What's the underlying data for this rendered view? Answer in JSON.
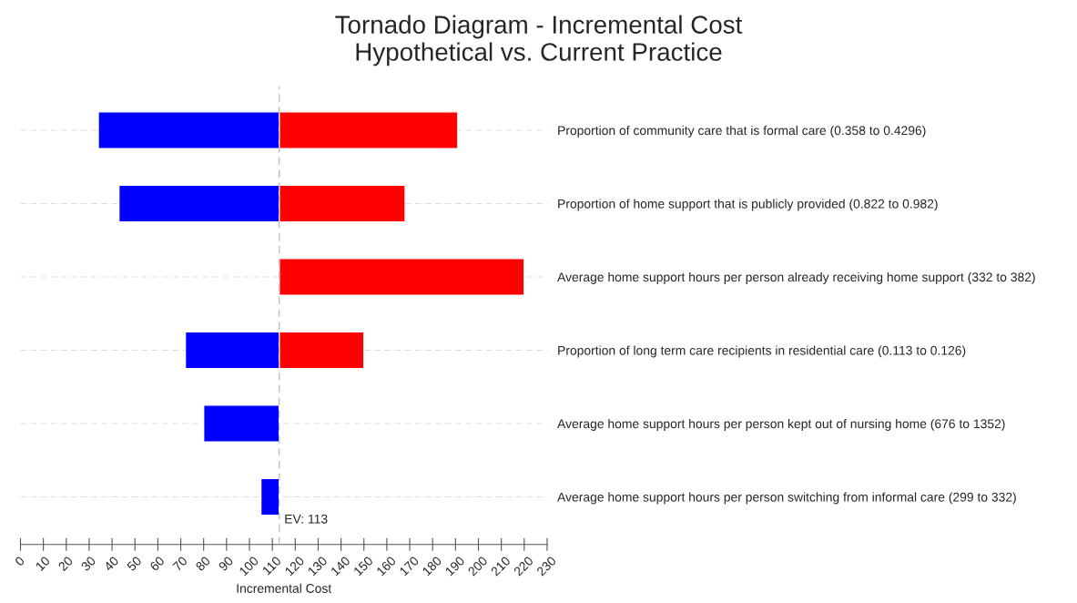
{
  "chart_data": {
    "type": "bar",
    "orientation": "horizontal",
    "title": "Tornado Diagram - Incremental Cost\nHypothetical vs. Current Practice",
    "xlabel": "Incremental Cost",
    "categories": [
      "Proportion of community care that is formal care (0.358 to 0.4296)",
      "Proportion of home support that is publicly provided (0.822 to 0.982)",
      "Average home support hours per person already receiving home support (332 to 382)",
      "Proportion of long term care recipients in residential care (0.113 to 0.126)",
      "Average home support hours per person kept out of nursing home (676 to 1352)",
      "Average home support hours per person switching from informal care (299 to 332)"
    ],
    "series": [
      {
        "color": "#0000ff",
        "base": [
          113,
          113,
          null,
          113,
          113,
          113
        ],
        "values": [
          -79,
          -70,
          null,
          -41,
          -33,
          -8
        ]
      },
      {
        "color": "#ff0000",
        "base": [
          113,
          113,
          113,
          113,
          null,
          null
        ],
        "values": [
          78,
          55,
          107,
          37,
          null,
          null
        ]
      }
    ],
    "xlim": [
      0,
      230
    ],
    "xticks": [
      0,
      10,
      20,
      30,
      40,
      50,
      60,
      70,
      80,
      90,
      100,
      110,
      120,
      130,
      140,
      150,
      160,
      170,
      180,
      190,
      200,
      210,
      220,
      230
    ],
    "ref_lines": [
      {
        "axis": "x",
        "value": 113,
        "label": "EV: 113",
        "color": "#c0c0c0",
        "line_style": "dashed"
      }
    ],
    "grid": "y",
    "legend": false
  }
}
